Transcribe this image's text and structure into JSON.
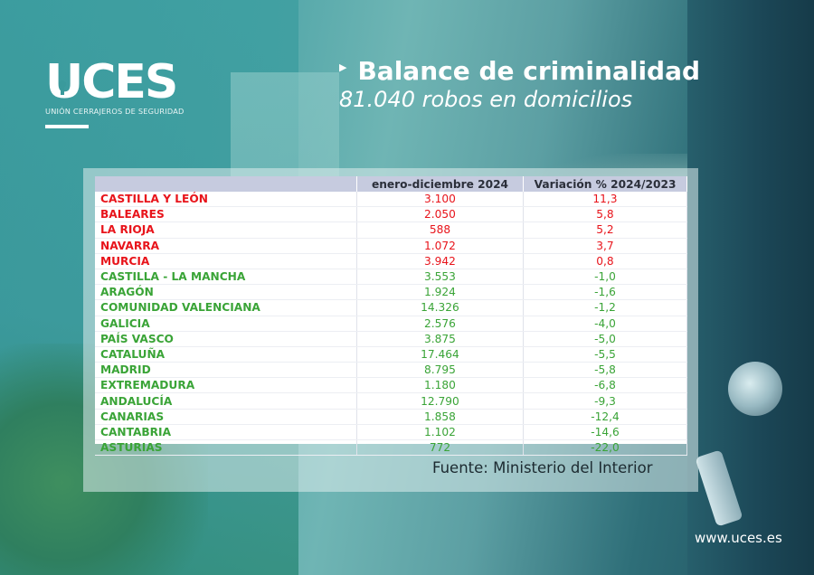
{
  "brand": {
    "name": "UCES",
    "tagline": "UNIÓN CERRAJEROS DE SEGURIDAD"
  },
  "header": {
    "title": "Balance de criminalidad",
    "subtitle": "81.040 robos en domicilios"
  },
  "table": {
    "columns": [
      "",
      "enero-diciembre 2024",
      "Variación % 2024/2023"
    ],
    "rows": [
      {
        "region": "CASTILLA Y LEÓN",
        "value": "3.100",
        "variation": "11,3",
        "trend": "up"
      },
      {
        "region": "BALEARES",
        "value": "2.050",
        "variation": "5,8",
        "trend": "up"
      },
      {
        "region": "LA RIOJA",
        "value": "588",
        "variation": "5,2",
        "trend": "up"
      },
      {
        "region": "NAVARRA",
        "value": "1.072",
        "variation": "3,7",
        "trend": "up"
      },
      {
        "region": "MURCIA",
        "value": "3.942",
        "variation": "0,8",
        "trend": "up"
      },
      {
        "region": "CASTILLA - LA MANCHA",
        "value": "3.553",
        "variation": "-1,0",
        "trend": "down"
      },
      {
        "region": "ARAGÓN",
        "value": "1.924",
        "variation": "-1,6",
        "trend": "down"
      },
      {
        "region": "COMUNIDAD VALENCIANA",
        "value": "14.326",
        "variation": "-1,2",
        "trend": "down"
      },
      {
        "region": "GALICIA",
        "value": "2.576",
        "variation": "-4,0",
        "trend": "down"
      },
      {
        "region": "PAÍS VASCO",
        "value": "3.875",
        "variation": "-5,0",
        "trend": "down"
      },
      {
        "region": "CATALUÑA",
        "value": "17.464",
        "variation": "-5,5",
        "trend": "down"
      },
      {
        "region": "MADRID",
        "value": "8.795",
        "variation": "-5,8",
        "trend": "down"
      },
      {
        "region": "EXTREMADURA",
        "value": "1.180",
        "variation": "-6,8",
        "trend": "down"
      },
      {
        "region": "ANDALUCÍA",
        "value": "12.790",
        "variation": "-9,3",
        "trend": "down"
      },
      {
        "region": "CANARIAS",
        "value": "1.858",
        "variation": "-12,4",
        "trend": "down"
      },
      {
        "region": "CANTABRIA",
        "value": "1.102",
        "variation": "-14,6",
        "trend": "down"
      },
      {
        "region": "ASTURIAS",
        "value": "772",
        "variation": "-22,0",
        "trend": "down"
      }
    ]
  },
  "source": "Fuente: Ministerio del Interior",
  "website": "www.uces.es",
  "colors": {
    "increase": "#e8141b",
    "decrease": "#3aa437",
    "header_bg": "#c6cbdf"
  }
}
